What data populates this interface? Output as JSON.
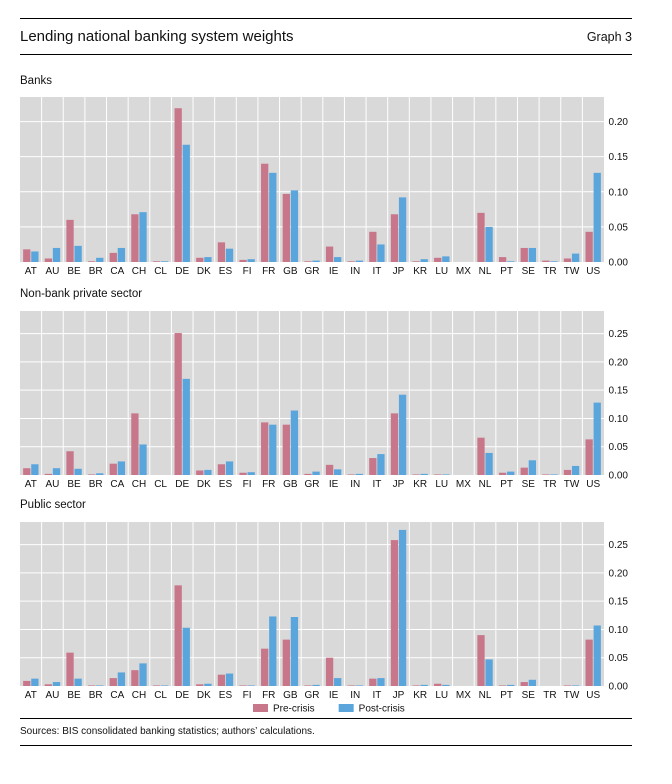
{
  "header": {
    "title": "Lending national banking system weights",
    "graph_number": "Graph 3"
  },
  "footer": {
    "sources": "Sources: BIS consolidated banking statistics; authors’ calculations."
  },
  "colors": {
    "pre": "#c8778b",
    "post": "#5aa6dc",
    "panel_bg": "#d9d9d9",
    "grid": "#ffffff"
  },
  "chart_data": [
    {
      "type": "bar",
      "title": "Banks",
      "categories": [
        "AT",
        "AU",
        "BE",
        "BR",
        "CA",
        "CH",
        "CL",
        "DE",
        "DK",
        "ES",
        "FI",
        "FR",
        "GB",
        "GR",
        "IE",
        "IN",
        "IT",
        "JP",
        "KR",
        "LU",
        "MX",
        "NL",
        "PT",
        "SE",
        "TR",
        "TW",
        "US"
      ],
      "yticks": [
        "0.20",
        "0.15",
        "0.10",
        "0.05",
        "0.00"
      ],
      "ylim": [
        0,
        0.235
      ],
      "grid": true,
      "series": [
        {
          "name": "Pre-crisis",
          "values": [
            0.018,
            0.005,
            0.06,
            0.001,
            0.013,
            0.068,
            0.001,
            0.219,
            0.006,
            0.028,
            0.003,
            0.14,
            0.097,
            0.001,
            0.022,
            0.001,
            0.043,
            0.068,
            0.001,
            0.006,
            0.0,
            0.07,
            0.007,
            0.02,
            0.002,
            0.005,
            0.043
          ]
        },
        {
          "name": "Post-crisis",
          "values": [
            0.015,
            0.02,
            0.023,
            0.006,
            0.02,
            0.071,
            0.001,
            0.167,
            0.007,
            0.019,
            0.004,
            0.127,
            0.102,
            0.002,
            0.007,
            0.002,
            0.025,
            0.092,
            0.004,
            0.008,
            0.0,
            0.05,
            0.001,
            0.02,
            0.001,
            0.012,
            0.127
          ]
        }
      ]
    },
    {
      "type": "bar",
      "title": "Non-bank private sector",
      "categories": [
        "AT",
        "AU",
        "BE",
        "BR",
        "CA",
        "CH",
        "CL",
        "DE",
        "DK",
        "ES",
        "FI",
        "FR",
        "GB",
        "GR",
        "IE",
        "IN",
        "IT",
        "JP",
        "KR",
        "LU",
        "MX",
        "NL",
        "PT",
        "SE",
        "TR",
        "TW",
        "US"
      ],
      "yticks": [
        "0.25",
        "0.20",
        "0.15",
        "0.10",
        "0.05",
        "0.00"
      ],
      "ylim": [
        0,
        0.29
      ],
      "grid": true,
      "series": [
        {
          "name": "Pre-crisis",
          "values": [
            0.012,
            0.002,
            0.042,
            0.001,
            0.02,
            0.109,
            0.0,
            0.251,
            0.008,
            0.019,
            0.004,
            0.093,
            0.089,
            0.002,
            0.018,
            0.001,
            0.03,
            0.109,
            0.001,
            0.001,
            0.0,
            0.066,
            0.004,
            0.013,
            0.001,
            0.009,
            0.063
          ]
        },
        {
          "name": "Post-crisis",
          "values": [
            0.019,
            0.012,
            0.011,
            0.003,
            0.024,
            0.054,
            0.0,
            0.17,
            0.009,
            0.024,
            0.005,
            0.089,
            0.114,
            0.006,
            0.01,
            0.002,
            0.037,
            0.142,
            0.002,
            0.001,
            0.0,
            0.039,
            0.006,
            0.026,
            0.001,
            0.016,
            0.128
          ]
        }
      ]
    },
    {
      "type": "bar",
      "title": "Public sector",
      "categories": [
        "AT",
        "AU",
        "BE",
        "BR",
        "CA",
        "CH",
        "CL",
        "DE",
        "DK",
        "ES",
        "FI",
        "FR",
        "GB",
        "GR",
        "IE",
        "IN",
        "IT",
        "JP",
        "KR",
        "LU",
        "MX",
        "NL",
        "PT",
        "SE",
        "TR",
        "TW",
        "US"
      ],
      "yticks": [
        "0.25",
        "0.20",
        "0.15",
        "0.10",
        "0.05",
        "0.00"
      ],
      "ylim": [
        0,
        0.29
      ],
      "grid": true,
      "legend": "bottom-center",
      "series": [
        {
          "name": "Pre-crisis",
          "values": [
            0.009,
            0.003,
            0.059,
            0.001,
            0.014,
            0.028,
            0.001,
            0.178,
            0.003,
            0.02,
            0.001,
            0.066,
            0.082,
            0.001,
            0.05,
            0.001,
            0.013,
            0.258,
            0.001,
            0.004,
            0.0,
            0.09,
            0.001,
            0.007,
            0.0,
            0.001,
            0.082
          ]
        },
        {
          "name": "Post-crisis",
          "values": [
            0.013,
            0.007,
            0.013,
            0.001,
            0.024,
            0.04,
            0.001,
            0.103,
            0.004,
            0.022,
            0.001,
            0.123,
            0.122,
            0.002,
            0.014,
            0.001,
            0.014,
            0.276,
            0.002,
            0.002,
            0.0,
            0.047,
            0.002,
            0.011,
            0.0,
            0.001,
            0.107
          ]
        }
      ]
    }
  ]
}
